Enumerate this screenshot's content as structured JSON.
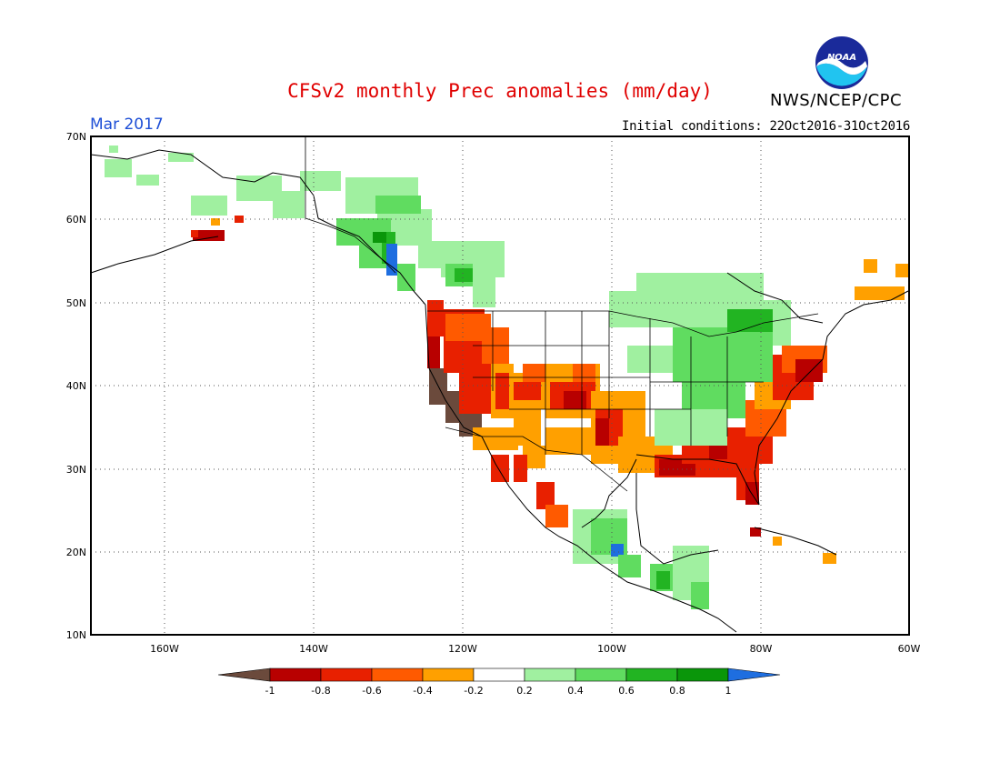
{
  "title": "CFSv2 monthly Prec anomalies (mm/day)",
  "period": "Mar 2017",
  "initial_conditions": "Initial conditions: 22Oct2016-31Oct2016",
  "agency": "NWS/NCEP/CPC",
  "logo_text": "NOAA",
  "lat_labels": [
    "70N",
    "60N",
    "50N",
    "40N",
    "30N",
    "20N",
    "10N"
  ],
  "lon_labels": [
    "160W",
    "140W",
    "120W",
    "100W",
    "80W",
    "60W"
  ],
  "colorbar": {
    "labels": [
      "-1",
      "-0.8",
      "-0.6",
      "-0.4",
      "-0.2",
      "0.2",
      "0.4",
      "0.6",
      "0.8",
      "1"
    ],
    "colors": [
      "#6b4a3c",
      "#b80000",
      "#e82000",
      "#ff5a00",
      "#ffa000",
      "#ffffff",
      "#a0f0a0",
      "#60dc60",
      "#22b422",
      "#0a960a",
      "#1e6ee0"
    ]
  },
  "colors": {
    "brown": "#6b4a3c",
    "dark_red": "#b80000",
    "red": "#e82000",
    "red_orange": "#ff5a00",
    "orange": "#ffa000",
    "light_green": "#a0f0a0",
    "green": "#60dc60",
    "mid_green": "#22b422",
    "dark_green": "#0a960a",
    "blue": "#1e6ee0"
  }
}
